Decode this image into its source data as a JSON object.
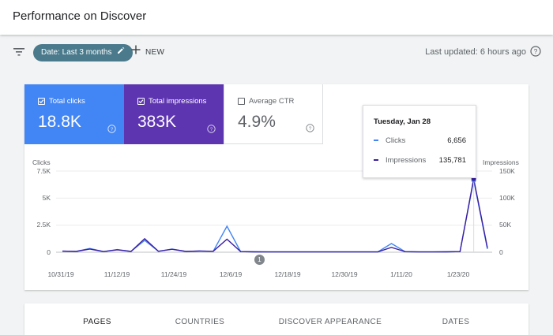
{
  "header": {
    "title": "Performance on Discover"
  },
  "filters": {
    "date_chip": "Date: Last 3 months",
    "new_label": "NEW",
    "last_updated": "Last updated: 6 hours ago"
  },
  "metrics": [
    {
      "label": "Total clicks",
      "value": "18.8K",
      "checked": true,
      "color": "#4285f4"
    },
    {
      "label": "Total impressions",
      "value": "383K",
      "checked": true,
      "color": "#5e35b1"
    },
    {
      "label": "Average CTR",
      "value": "4.9%",
      "checked": false,
      "color": "#ffffff"
    }
  ],
  "chart": {
    "left_axis_title": "Clicks",
    "right_axis_title": "Impressions",
    "left_ticks": [
      "7.5K",
      "5K",
      "2.5K",
      "0"
    ],
    "right_ticks": [
      "150K",
      "100K",
      "50K",
      "0"
    ],
    "x_ticks": [
      "10/31/19",
      "11/12/19",
      "11/24/19",
      "12/6/19",
      "12/18/19",
      "12/30/19",
      "1/11/20",
      "1/23/20"
    ],
    "annotation_marker": "1"
  },
  "chart_data": {
    "type": "line",
    "x": [
      "10/31/19",
      "11/3/19",
      "11/6/19",
      "11/9/19",
      "11/12/19",
      "11/15/19",
      "11/18/19",
      "11/21/19",
      "11/24/19",
      "11/27/19",
      "11/30/19",
      "12/3/19",
      "12/6/19",
      "12/9/19",
      "12/12/19",
      "12/15/19",
      "12/18/19",
      "12/21/19",
      "12/24/19",
      "12/27/19",
      "12/30/19",
      "1/2/20",
      "1/5/20",
      "1/8/20",
      "1/11/20",
      "1/14/20",
      "1/17/20",
      "1/20/20",
      "1/23/20",
      "1/26/20",
      "1/28/20",
      "1/29/20"
    ],
    "series": [
      {
        "name": "Clicks",
        "axis": "left",
        "color": "#4285f4",
        "values": [
          100,
          80,
          350,
          60,
          250,
          70,
          1100,
          90,
          300,
          80,
          120,
          90,
          2400,
          60,
          40,
          30,
          30,
          30,
          30,
          30,
          30,
          30,
          30,
          30,
          800,
          50,
          30,
          30,
          40,
          60,
          6656,
          300
        ]
      },
      {
        "name": "Impressions",
        "axis": "right",
        "color": "#3c1fa0",
        "values": [
          2000,
          1500,
          6000,
          1200,
          4500,
          1400,
          25000,
          1800,
          5500,
          1500,
          2200,
          1700,
          24000,
          1200,
          800,
          600,
          600,
          600,
          600,
          600,
          600,
          600,
          600,
          600,
          9000,
          1000,
          600,
          600,
          800,
          1200,
          135781,
          8000
        ]
      }
    ],
    "left_axis": {
      "title": "Clicks",
      "range": [
        0,
        7500
      ]
    },
    "right_axis": {
      "title": "Impressions",
      "range": [
        0,
        150000
      ]
    },
    "tooltip": {
      "date": "Tuesday, Jan 28",
      "clicks": "6,656",
      "impressions": "135,781"
    }
  },
  "tabs": [
    {
      "label": "PAGES",
      "active": true
    },
    {
      "label": "COUNTRIES",
      "active": false
    },
    {
      "label": "DISCOVER APPEARANCE",
      "active": false
    },
    {
      "label": "DATES",
      "active": false
    }
  ]
}
